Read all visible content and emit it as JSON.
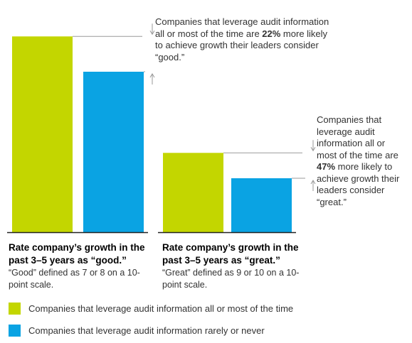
{
  "colors": {
    "series_often": "#c3d600",
    "series_rarely": "#0aa3e3",
    "axis": "#222222",
    "connector": "#9a9a9a",
    "text": "#333333"
  },
  "chart_data": {
    "type": "bar",
    "categories": [
      "good",
      "great"
    ],
    "series": [
      {
        "name": "Companies that leverage audit information all or most of the time",
        "values": [
          1.22,
          1.47
        ]
      },
      {
        "name": "Companies that leverage audit information rarely or never",
        "values": [
          1.0,
          1.0
        ]
      }
    ],
    "relative_heights_note": "",
    "group_scale": [
      1.0,
      0.33
    ],
    "annotations": [
      {
        "category": "good",
        "text_before": "Companies that leverage audit information all or most of the time are ",
        "highlight": "22%",
        "text_after": " more likely to achieve growth their leaders consider “good.”"
      },
      {
        "category": "great",
        "text_before": "Companies that leverage audit information all or most of the time are ",
        "highlight": "47%",
        "text_after": " more likely to achieve growth their leaders consider “great.”"
      }
    ],
    "group_labels": [
      {
        "heading": "Rate company’s growth in the past 3–5 years as “good.”",
        "note": "“Good” defined as 7 or 8 on a 10-point scale."
      },
      {
        "heading": "Rate company’s growth in the past 3–5 years as “great.”",
        "note": "“Great” defined as 9 or 10 on a 10-point scale."
      }
    ],
    "legend": [
      "Companies that leverage audit information all or most of the time",
      "Companies that leverage audit information rarely or never"
    ],
    "legend_position": "bottom-left",
    "grid": false
  }
}
